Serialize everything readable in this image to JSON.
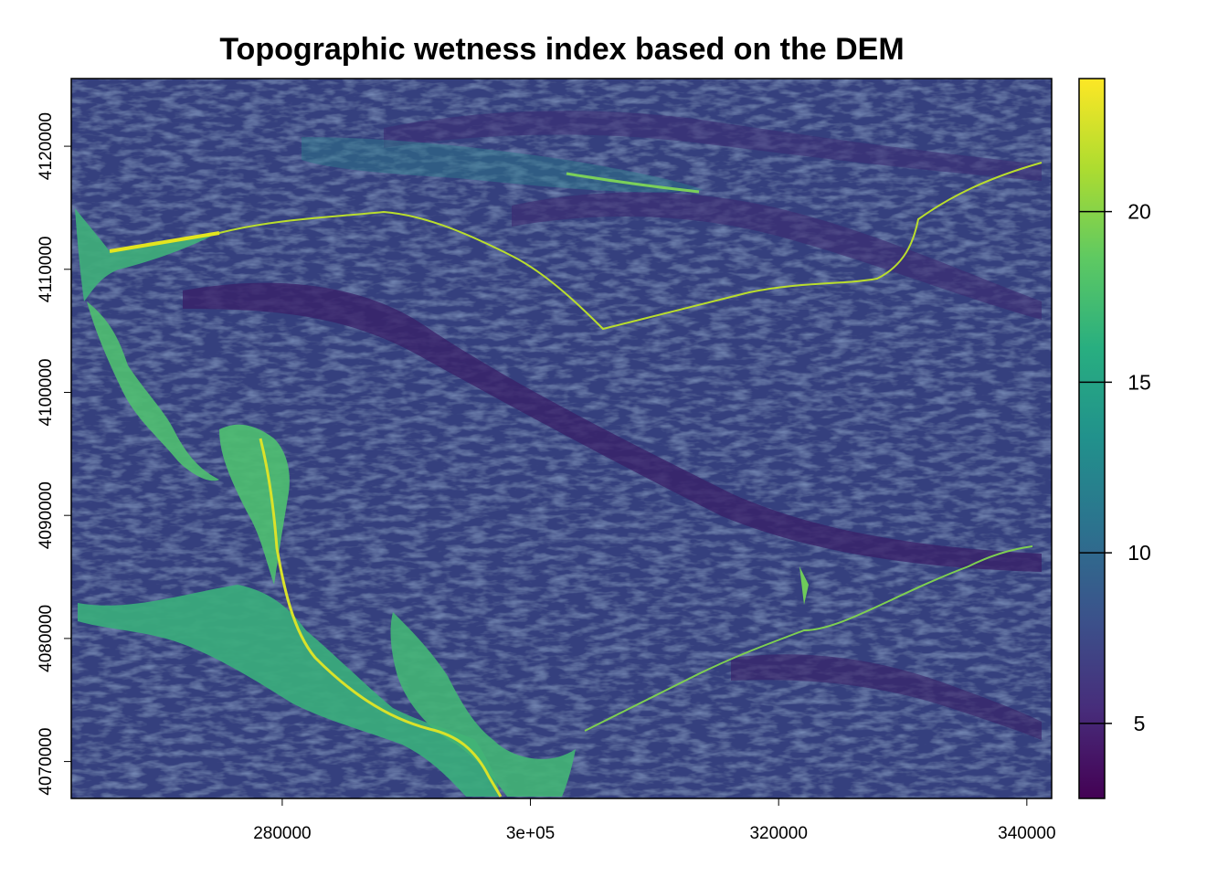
{
  "title": "Topographic wetness index based on the DEM",
  "map": {
    "x_range": [
      263000,
      342000
    ],
    "y_range": [
      4067000,
      4125500
    ],
    "x_ticks": [
      {
        "value": 280000,
        "label": "280000"
      },
      {
        "value": 300000,
        "label": "3e+05"
      },
      {
        "value": 320000,
        "label": "320000"
      },
      {
        "value": 340000,
        "label": "340000"
      }
    ],
    "y_ticks": [
      {
        "value": 4070000,
        "label": "4070000"
      },
      {
        "value": 4080000,
        "label": "4080000"
      },
      {
        "value": 4090000,
        "label": "4090000"
      },
      {
        "value": 4100000,
        "label": "4100000"
      },
      {
        "value": 4110000,
        "label": "4110000"
      },
      {
        "value": 4120000,
        "label": "4120000"
      }
    ]
  },
  "legend": {
    "range": [
      2.8,
      23.9
    ],
    "ticks": [
      {
        "value": 5,
        "label": "5"
      },
      {
        "value": 10,
        "label": "10"
      },
      {
        "value": 15,
        "label": "15"
      },
      {
        "value": 20,
        "label": "20"
      }
    ],
    "colors": [
      "#440154",
      "#472d7b",
      "#3b528b",
      "#2c728e",
      "#21918c",
      "#28ae80",
      "#5ec962",
      "#addc30",
      "#fde725"
    ]
  }
}
